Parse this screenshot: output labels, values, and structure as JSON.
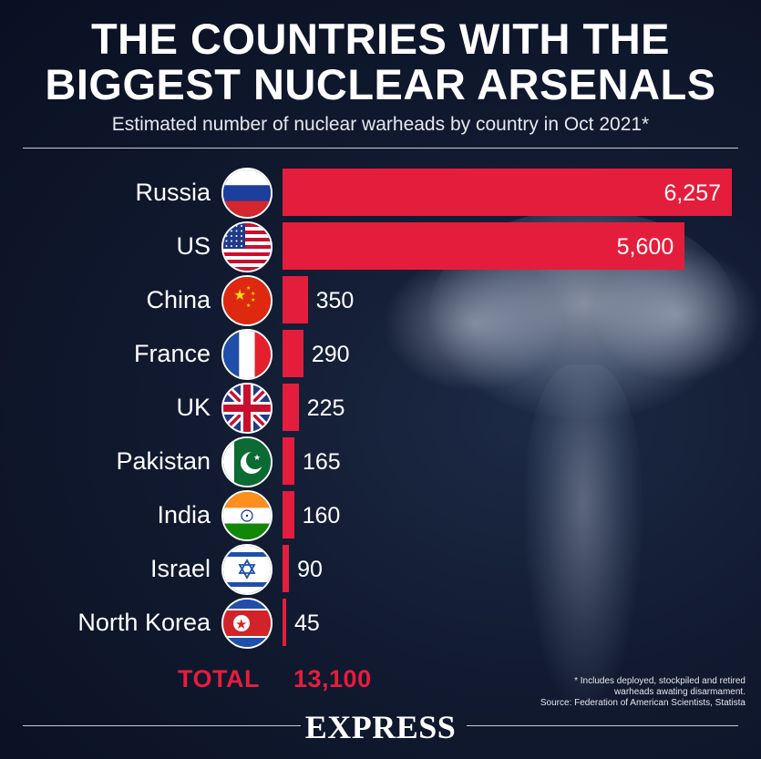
{
  "header": {
    "title_line1": "THE COUNTRIES WITH THE",
    "title_line2": "BIGGEST NUCLEAR ARSENALS",
    "subtitle": "Estimated number of nuclear warheads by country in Oct 2021*"
  },
  "colors": {
    "bar": "#e51d3c",
    "background": "#111a30",
    "text": "#ffffff",
    "total": "#e51d3c"
  },
  "chart_data": {
    "type": "bar",
    "orientation": "horizontal",
    "title": "THE COUNTRIES WITH THE BIGGEST NUCLEAR ARSENALS",
    "subtitle": "Estimated number of nuclear warheads by country in Oct 2021*",
    "categories": [
      "Russia",
      "US",
      "China",
      "France",
      "UK",
      "Pakistan",
      "India",
      "Israel",
      "North Korea"
    ],
    "values": [
      6257,
      5600,
      350,
      290,
      225,
      165,
      160,
      90,
      45
    ],
    "value_labels": [
      "6,257",
      "5,600",
      "350",
      "290",
      "225",
      "165",
      "160",
      "90",
      "45"
    ],
    "flags": [
      "russia-flag",
      "us-flag",
      "china-flag",
      "france-flag",
      "uk-flag",
      "pakistan-flag",
      "india-flag",
      "israel-flag",
      "north-korea-flag"
    ],
    "xlim": [
      0,
      6257
    ],
    "grid": false,
    "legend": "none"
  },
  "total": {
    "label": "TOTAL",
    "value": "13,100"
  },
  "footnote": {
    "line1": "* Includes deployed, stockpiled and retired",
    "line2": "warheads awating disarmament.",
    "source": "Source: Federation of American Scientists, Statista"
  },
  "brand": "EXPRESS"
}
